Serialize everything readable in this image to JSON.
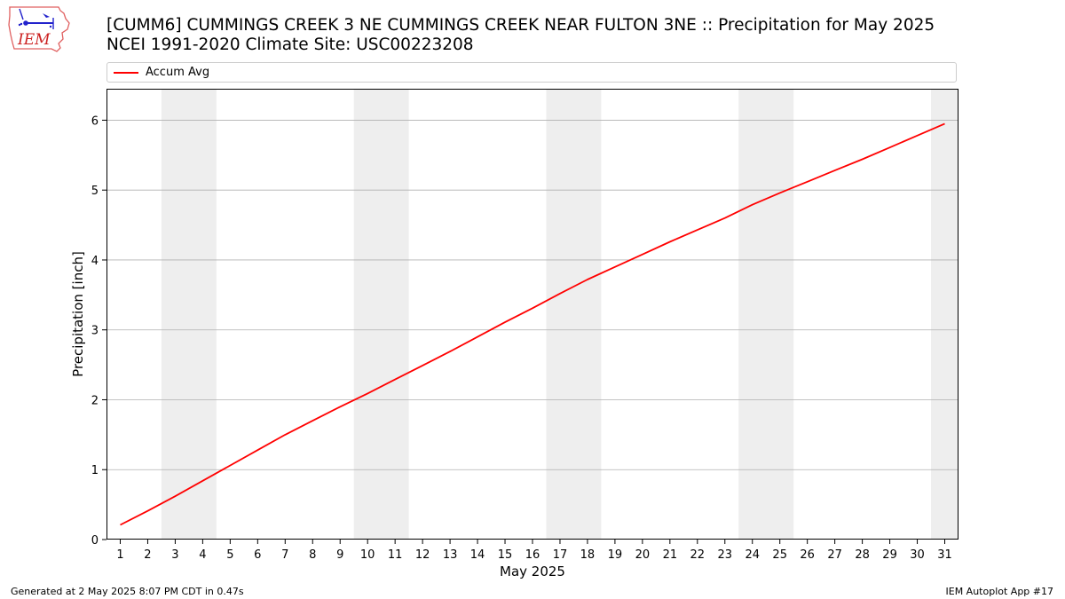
{
  "logo": {
    "text": "IEM"
  },
  "title": {
    "line1": "[CUMM6] CUMMINGS CREEK 3 NE CUMMINGS CREEK NEAR FULTON 3NE :: Precipitation for May 2025",
    "line2": "NCEI 1991-2020 Climate Site: USC00223208"
  },
  "footer": {
    "left": "Generated at 2 May 2025 8:07 PM CDT in 0.47s",
    "right": "IEM Autoplot App #17"
  },
  "chart_data": {
    "type": "line",
    "xlabel": "May 2025",
    "ylabel": "Precipitation [inch]",
    "xlim": [
      0.5,
      31.5
    ],
    "ylim": [
      0,
      6.45
    ],
    "x_ticks": [
      "1",
      "2",
      "3",
      "4",
      "5",
      "6",
      "7",
      "8",
      "9",
      "10",
      "11",
      "12",
      "13",
      "14",
      "15",
      "16",
      "17",
      "18",
      "19",
      "20",
      "21",
      "22",
      "23",
      "24",
      "25",
      "26",
      "27",
      "28",
      "29",
      "30",
      "31"
    ],
    "y_ticks": [
      "0",
      "1",
      "2",
      "3",
      "4",
      "5",
      "6"
    ],
    "grid": "horizontal",
    "legend": {
      "placement": "top-left",
      "entries": [
        "Accum Avg"
      ]
    },
    "weekend_shading": [
      [
        2.5,
        4.5
      ],
      [
        9.5,
        11.5
      ],
      [
        16.5,
        18.5
      ],
      [
        23.5,
        25.5
      ],
      [
        30.5,
        31.5
      ]
    ],
    "colors": {
      "line": "#ff0000",
      "shading": "#eeeeee",
      "grid": "#b0b0b0"
    },
    "series": [
      {
        "name": "Accum Avg",
        "x": [
          1,
          2,
          3,
          4,
          5,
          6,
          7,
          8,
          9,
          10,
          11,
          12,
          13,
          14,
          15,
          16,
          17,
          18,
          19,
          20,
          21,
          22,
          23,
          24,
          25,
          26,
          27,
          28,
          29,
          30,
          31
        ],
        "values": [
          0.21,
          0.41,
          0.62,
          0.84,
          1.06,
          1.28,
          1.5,
          1.7,
          1.9,
          2.09,
          2.29,
          2.49,
          2.69,
          2.9,
          3.11,
          3.31,
          3.52,
          3.72,
          3.9,
          4.08,
          4.26,
          4.43,
          4.6,
          4.79,
          4.96,
          5.12,
          5.28,
          5.44,
          5.61,
          5.78,
          5.95
        ]
      }
    ]
  }
}
